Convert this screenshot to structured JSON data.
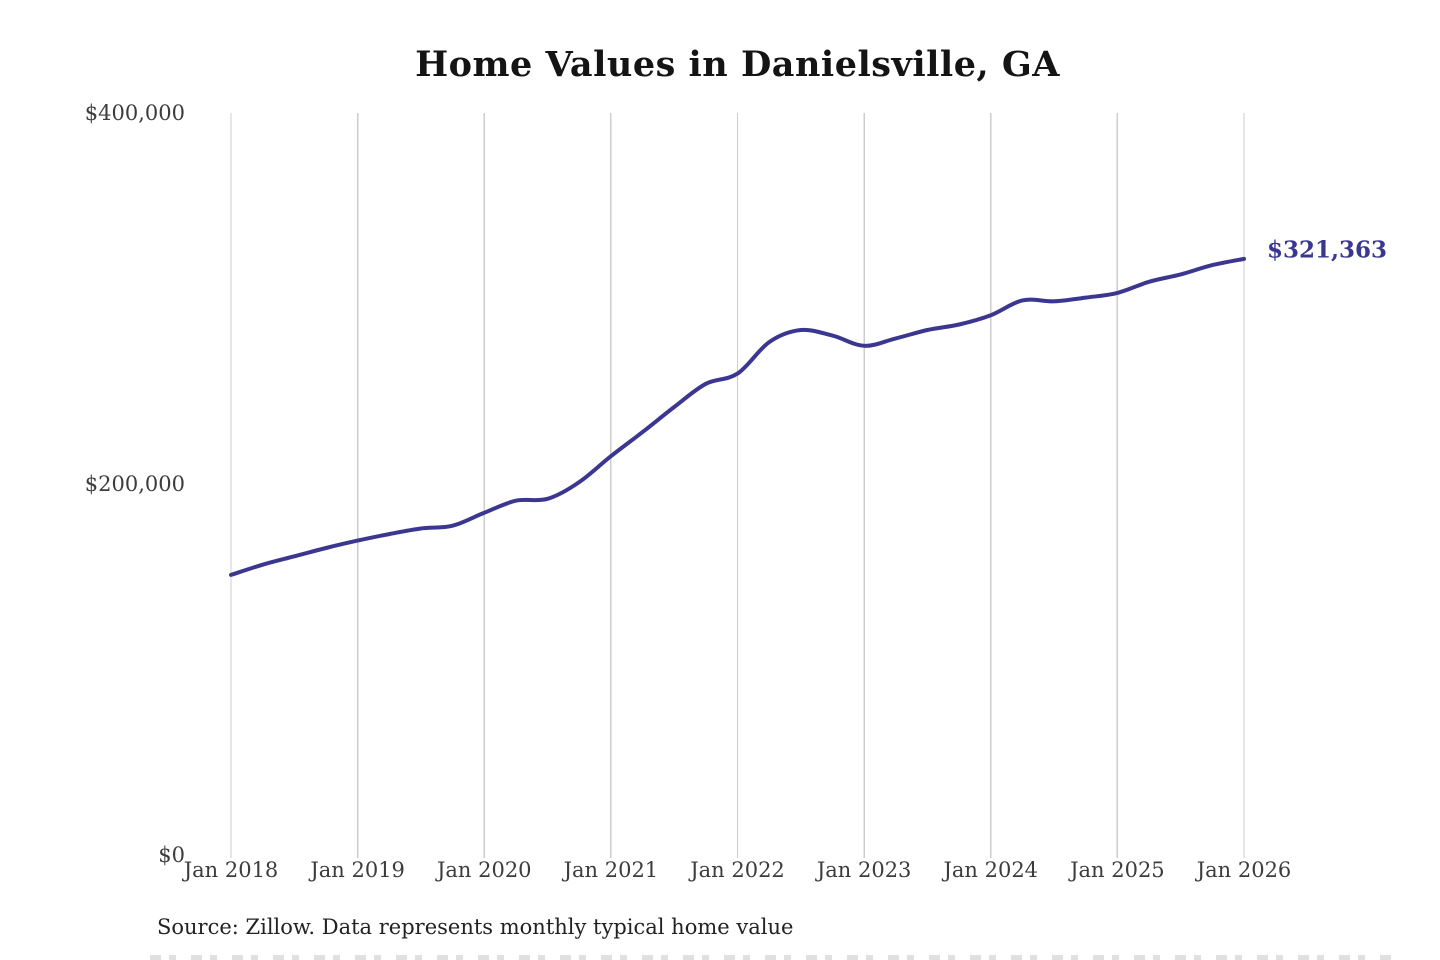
{
  "title": "Home Values in Danielsville, GA",
  "annotation": {
    "latest_value_label": "$321,363"
  },
  "source_note": "Source: Zillow. Data represents monthly typical home value",
  "colors": {
    "line": "#3b3790",
    "annotation_text": "#3b3790",
    "gridline": "#cccccc",
    "axis_text": "#3c3c3c",
    "title_text": "#141414",
    "background": "#ffffff"
  },
  "chart_data": {
    "type": "line",
    "title": "Home Values in Danielsville, GA",
    "xlabel": "",
    "ylabel": "",
    "ylim": [
      0,
      400000
    ],
    "y_ticks": [
      0,
      200000,
      400000
    ],
    "y_tick_labels": [
      "$0",
      "$200,000",
      "$400,000"
    ],
    "x_tick_labels": [
      "Jan 2018",
      "Jan 2019",
      "Jan 2020",
      "Jan 2021",
      "Jan 2022",
      "Jan 2023",
      "Jan 2024",
      "Jan 2025",
      "Jan 2026"
    ],
    "grid": "vertical",
    "legend": "none",
    "series": [
      {
        "name": "Monthly typical home value",
        "final_value": 321363,
        "points": [
          [
            "2018-01",
            151000
          ],
          [
            "2018-04",
            156500
          ],
          [
            "2018-07",
            161000
          ],
          [
            "2018-10",
            165500
          ],
          [
            "2019-01",
            169500
          ],
          [
            "2019-04",
            173000
          ],
          [
            "2019-07",
            176000
          ],
          [
            "2019-10",
            177500
          ],
          [
            "2020-01",
            184500
          ],
          [
            "2020-04",
            191000
          ],
          [
            "2020-07",
            192000
          ],
          [
            "2020-10",
            201000
          ],
          [
            "2021-01",
            215000
          ],
          [
            "2021-04",
            228000
          ],
          [
            "2021-07",
            241500
          ],
          [
            "2021-10",
            254000
          ],
          [
            "2022-01",
            259500
          ],
          [
            "2022-04",
            276500
          ],
          [
            "2022-07",
            283000
          ],
          [
            "2022-10",
            280000
          ],
          [
            "2023-01",
            274500
          ],
          [
            "2023-04",
            278500
          ],
          [
            "2023-07",
            283000
          ],
          [
            "2023-10",
            286000
          ],
          [
            "2024-01",
            291000
          ],
          [
            "2024-04",
            299000
          ],
          [
            "2024-07",
            298500
          ],
          [
            "2024-10",
            300500
          ],
          [
            "2025-01",
            303000
          ],
          [
            "2025-04",
            309000
          ],
          [
            "2025-07",
            313000
          ],
          [
            "2025-10",
            318000
          ],
          [
            "2026-01",
            321363
          ]
        ]
      }
    ]
  }
}
